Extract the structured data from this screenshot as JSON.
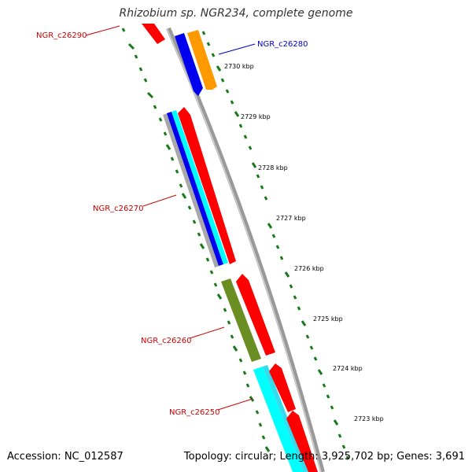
{
  "title": "Rhizobium sp. NGR234, complete genome",
  "footer": {
    "accession": "Accession: NC_012587",
    "summary": "Topology: circular; Length: 3,925,702 bp; Genes: 3,691"
  },
  "scale_labels": [
    "2730 kbp",
    "2729 kbp",
    "2728 kbp",
    "2727 kbp",
    "2726 kbp",
    "2725 kbp",
    "2724 kbp",
    "2723 kbp"
  ],
  "gene_labels": [
    {
      "text": "NGR_c26290",
      "color": "#cc0000"
    },
    {
      "text": "NGR_c26280",
      "color": "#0000cc"
    },
    {
      "text": "NGR_c26270",
      "color": "#cc0000"
    },
    {
      "text": "NGR_c26260",
      "color": "#cc0000"
    },
    {
      "text": "NGR_c26250",
      "color": "#cc0000"
    }
  ],
  "colors": {
    "backbone": "#888888",
    "scale_ticks": "#1a7a1a",
    "forward_gene": "#ff0000",
    "blue_gene": "#0000ee",
    "orange_gene": "#ff9900",
    "cyan_gene": "#00ffff",
    "olive_gene": "#6b8e23",
    "grey_gene": "#a0a0a0"
  }
}
